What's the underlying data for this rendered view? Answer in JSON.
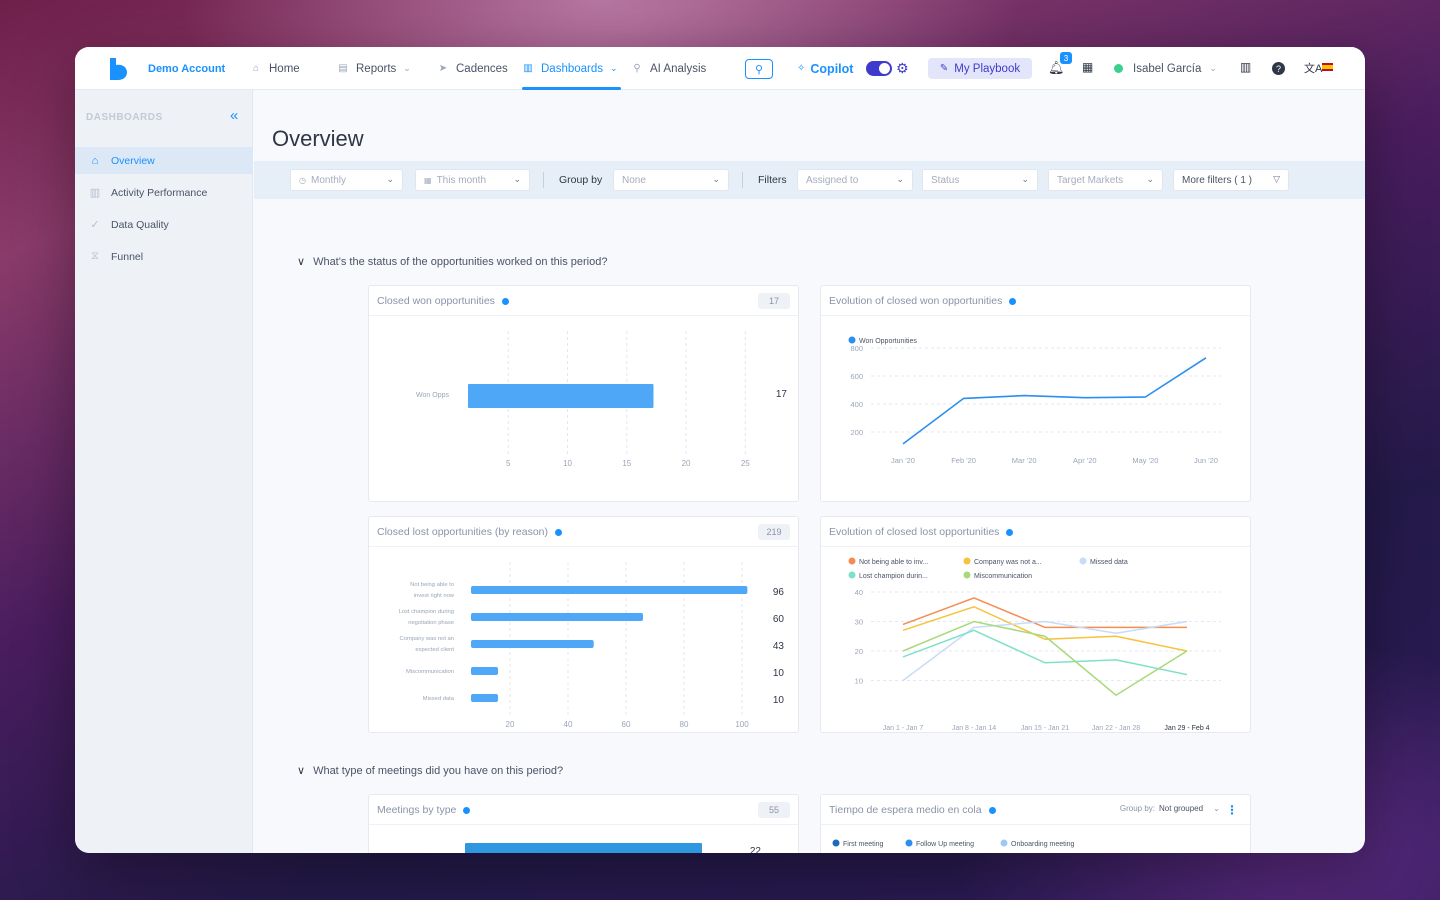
{
  "nav": {
    "account": "Demo Account",
    "home": "Home",
    "reports": "Reports",
    "cadences": "Cadences",
    "dashboards": "Dashboards",
    "ai_analysis": "AI Analysis",
    "copilot": "Copilot",
    "playbook": "My Playbook",
    "notifications": "3",
    "user": "Isabel García"
  },
  "sidebar": {
    "title": "DASHBOARDS",
    "items": [
      {
        "label": "Overview",
        "icon": "home-icon"
      },
      {
        "label": "Activity Performance",
        "icon": "bar-chart-icon"
      },
      {
        "label": "Data Quality",
        "icon": "check-icon"
      },
      {
        "label": "Funnel",
        "icon": "funnel-icon"
      }
    ]
  },
  "page": {
    "title": "Overview"
  },
  "filters": {
    "period": "Monthly",
    "range": "This month",
    "group_by_label": "Group by",
    "group_by": "None",
    "filters_label": "Filters",
    "assigned": "Assigned to",
    "status": "Status",
    "markets": "Target Markets",
    "more": "More filters ( 1 )"
  },
  "sections": {
    "opportunities": "What's the status of the opportunities worked on this period?",
    "meetings": "What type of meetings did you have on this period?"
  },
  "cards": {
    "won": {
      "title": "Closed won opportunities",
      "count": "17"
    },
    "won_evolution": {
      "title": "Evolution of closed won opportunities"
    },
    "lost": {
      "title": "Closed lost opportunities (by reason)",
      "count": "219"
    },
    "lost_evolution": {
      "title": "Evolution of closed lost opportunities"
    },
    "meetings": {
      "title": "Meetings by type",
      "count": "55",
      "partial_value": "22"
    },
    "wait_time": {
      "title": "Tiempo de espera medio en cola",
      "group_label": "Group by:",
      "group_value": "Not grouped"
    }
  },
  "colors": {
    "accent": "#1991ff",
    "bar": "#4ea7f7",
    "indigo": "#3e3acb"
  },
  "chart_data": [
    {
      "type": "bar",
      "orientation": "horizontal",
      "categories": [
        "Won Opps"
      ],
      "values": [
        17
      ],
      "xticks": [
        5,
        10,
        15,
        20,
        25
      ],
      "xlim": [
        0,
        27
      ]
    },
    {
      "type": "line",
      "x": [
        "Jan '20",
        "Feb '20",
        "Mar '20",
        "Apr '20",
        "May '20",
        "Jun '20"
      ],
      "series": [
        {
          "name": "Won Opportunities",
          "values": [
            115,
            440,
            460,
            445,
            450,
            730
          ],
          "color": "#2b8ef0"
        }
      ],
      "yticks": [
        200,
        400,
        600,
        800
      ],
      "ylim": [
        0,
        900
      ]
    },
    {
      "type": "bar",
      "orientation": "horizontal",
      "categories": [
        [
          "Not being able to",
          "invest right now"
        ],
        [
          "Lost champion during",
          "negotiation phase"
        ],
        [
          "Company was not an",
          "expected client"
        ],
        [
          "Miscommunication"
        ],
        [
          "Missed data"
        ]
      ],
      "values": [
        96,
        60,
        43,
        10,
        10
      ],
      "xticks": [
        20,
        40,
        60,
        80,
        100
      ],
      "xlim": [
        0,
        100
      ]
    },
    {
      "type": "line",
      "x": [
        "Jan 1 - Jan 7",
        "Jan 8 - Jan 14",
        "Jan 15 - Jan 21",
        "Jan 22 - Jan 28",
        "Jan 29 - Feb 4"
      ],
      "series": [
        {
          "name": "Not being able to inv...",
          "values": [
            29,
            38,
            28,
            28,
            28
          ],
          "color": "#f58c52"
        },
        {
          "name": "Company was not a...",
          "values": [
            27,
            35,
            24,
            25,
            20
          ],
          "color": "#f7c23c"
        },
        {
          "name": "Missed data",
          "values": [
            10,
            28,
            30,
            26,
            30
          ],
          "color": "#c7dcf7"
        },
        {
          "name": "Lost champion durin...",
          "values": [
            18,
            27,
            16,
            17,
            12
          ],
          "color": "#7fe0c8"
        },
        {
          "name": "Miscommunication",
          "values": [
            20,
            30,
            25,
            5,
            20
          ],
          "color": "#a9d97a"
        }
      ],
      "yticks": [
        10,
        20,
        30,
        40
      ],
      "ylim": [
        0,
        40
      ]
    },
    {
      "type": "bar",
      "orientation": "horizontal",
      "values": [
        22
      ]
    },
    {
      "type": "line",
      "series": [
        {
          "name": "First meeting",
          "color": "#1b6db8"
        },
        {
          "name": "Follow Up meeting",
          "color": "#2b8ef0"
        },
        {
          "name": "Onboarding meeting",
          "color": "#9fc9f5"
        }
      ]
    }
  ]
}
